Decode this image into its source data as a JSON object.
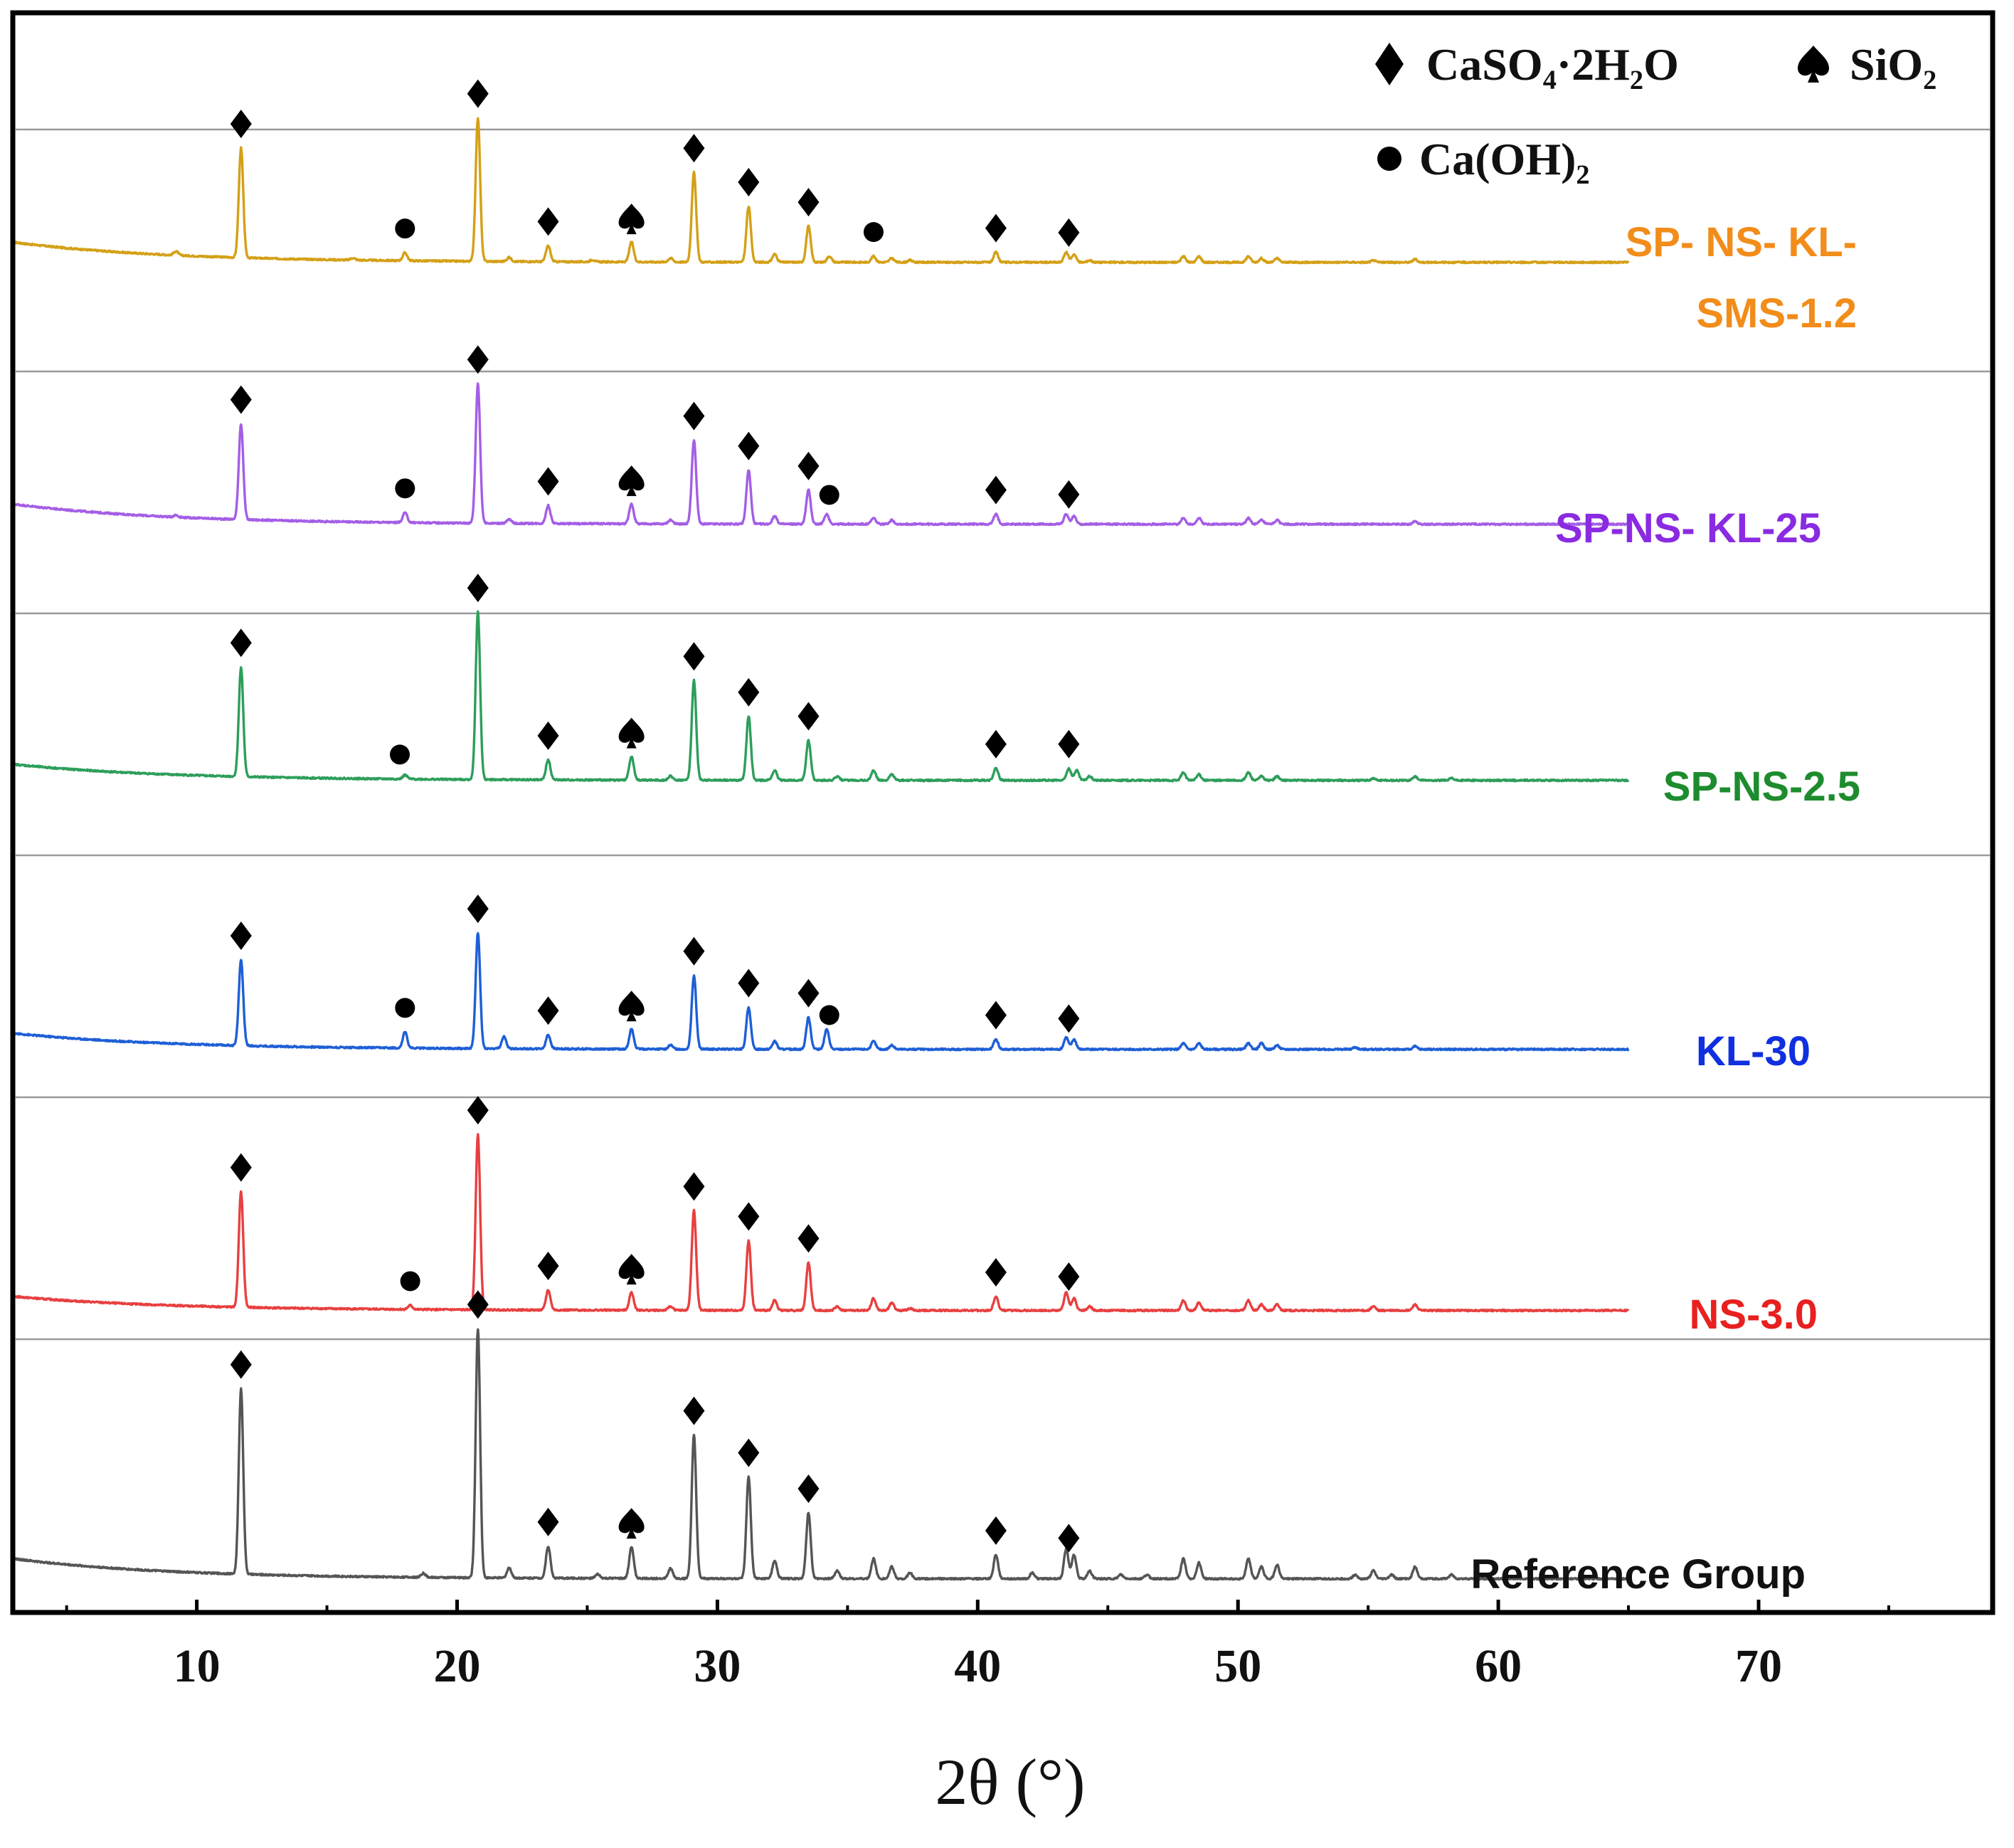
{
  "chart_data": {
    "type": "line",
    "title": "",
    "xlabel": "2θ (°)",
    "ylabel": "",
    "xlim": [
      3,
      79
    ],
    "xticks": [
      10,
      20,
      30,
      40,
      50,
      60,
      70
    ],
    "x_range": [
      3,
      65
    ],
    "legend": [
      {
        "marker": "diamond",
        "label": "CaSO₄·2H₂O"
      },
      {
        "marker": "spade",
        "label": "SiO₂"
      },
      {
        "marker": "circle",
        "label": "Ca(OH)₂"
      }
    ],
    "series": [
      {
        "name": "SP- NS- KL- SMS-1.2",
        "label_lines": [
          "SP- NS- KL-",
          "SMS-1.2"
        ],
        "color": "#D4A017",
        "label_color": "#F28C1A",
        "peaks": [
          [
            9.2,
            2
          ],
          [
            11.7,
            55
          ],
          [
            16.0,
            1
          ],
          [
            18.0,
            4
          ],
          [
            20.8,
            72
          ],
          [
            22.0,
            2
          ],
          [
            23.5,
            8
          ],
          [
            25.2,
            1
          ],
          [
            26.7,
            10
          ],
          [
            28.2,
            2
          ],
          [
            29.1,
            45
          ],
          [
            31.2,
            28
          ],
          [
            32.2,
            4
          ],
          [
            33.5,
            18
          ],
          [
            34.3,
            3
          ],
          [
            36.0,
            3
          ],
          [
            36.7,
            2
          ],
          [
            37.4,
            1
          ],
          [
            40.7,
            5
          ],
          [
            43.4,
            5
          ],
          [
            43.7,
            4
          ],
          [
            44.3,
            1
          ],
          [
            47.9,
            3
          ],
          [
            48.5,
            3
          ],
          [
            50.4,
            3
          ],
          [
            50.9,
            2
          ],
          [
            51.5,
            2
          ],
          [
            55.2,
            1
          ],
          [
            56.8,
            1.5
          ]
        ],
        "bg_start": 10,
        "markers": [
          {
            "x": 11.7,
            "type": "diamond"
          },
          {
            "x": 18.0,
            "type": "circle"
          },
          {
            "x": 20.8,
            "type": "diamond"
          },
          {
            "x": 23.5,
            "type": "diamond"
          },
          {
            "x": 26.7,
            "type": "spade"
          },
          {
            "x": 29.1,
            "type": "diamond"
          },
          {
            "x": 31.2,
            "type": "diamond"
          },
          {
            "x": 33.5,
            "type": "diamond"
          },
          {
            "x": 36.0,
            "type": "circle"
          },
          {
            "x": 40.7,
            "type": "diamond"
          },
          {
            "x": 43.5,
            "type": "diamond"
          }
        ]
      },
      {
        "name": "SP-NS- KL-25",
        "label_lines": [
          "SP-NS- KL-25"
        ],
        "color": "#A45EE5",
        "label_color": "#8A2BE2",
        "peaks": [
          [
            9.2,
            1
          ],
          [
            11.7,
            48
          ],
          [
            18.0,
            5
          ],
          [
            20.8,
            70
          ],
          [
            22.0,
            2
          ],
          [
            23.5,
            9
          ],
          [
            26.7,
            10
          ],
          [
            28.2,
            2
          ],
          [
            29.1,
            42
          ],
          [
            31.2,
            27
          ],
          [
            32.2,
            4
          ],
          [
            33.5,
            17
          ],
          [
            34.2,
            5
          ],
          [
            36.0,
            3
          ],
          [
            36.7,
            2
          ],
          [
            40.7,
            5
          ],
          [
            43.4,
            5
          ],
          [
            43.7,
            4
          ],
          [
            47.9,
            3
          ],
          [
            48.5,
            3
          ],
          [
            50.4,
            3
          ],
          [
            50.9,
            2
          ],
          [
            51.5,
            2
          ],
          [
            56.8,
            1.5
          ]
        ],
        "bg_start": 10,
        "markers": [
          {
            "x": 11.7,
            "type": "diamond"
          },
          {
            "x": 18.0,
            "type": "circle"
          },
          {
            "x": 20.8,
            "type": "diamond"
          },
          {
            "x": 23.5,
            "type": "diamond"
          },
          {
            "x": 26.7,
            "type": "spade"
          },
          {
            "x": 29.1,
            "type": "diamond"
          },
          {
            "x": 31.2,
            "type": "diamond"
          },
          {
            "x": 33.5,
            "type": "diamond"
          },
          {
            "x": 34.3,
            "type": "circle"
          },
          {
            "x": 40.7,
            "type": "diamond"
          },
          {
            "x": 43.5,
            "type": "diamond"
          }
        ]
      },
      {
        "name": "SP-NS-2.5",
        "label_lines": [
          "SP-NS-2.5"
        ],
        "color": "#2E9E5B",
        "label_color": "#1E8C2E",
        "peaks": [
          [
            11.7,
            55
          ],
          [
            18.0,
            2
          ],
          [
            20.8,
            84
          ],
          [
            23.5,
            10
          ],
          [
            26.7,
            12
          ],
          [
            28.2,
            2
          ],
          [
            29.1,
            50
          ],
          [
            31.2,
            32
          ],
          [
            32.2,
            5
          ],
          [
            33.5,
            20
          ],
          [
            34.6,
            2
          ],
          [
            36.0,
            5
          ],
          [
            36.7,
            3
          ],
          [
            40.7,
            6
          ],
          [
            43.5,
            6
          ],
          [
            43.8,
            5
          ],
          [
            44.3,
            2
          ],
          [
            47.9,
            4
          ],
          [
            48.5,
            3
          ],
          [
            50.4,
            4
          ],
          [
            50.9,
            2
          ],
          [
            51.5,
            2
          ],
          [
            55.2,
            1
          ],
          [
            56.8,
            2
          ],
          [
            58.2,
            1
          ]
        ],
        "bg_start": 8,
        "markers": [
          {
            "x": 11.7,
            "type": "diamond"
          },
          {
            "x": 17.8,
            "type": "circle"
          },
          {
            "x": 20.8,
            "type": "diamond"
          },
          {
            "x": 23.5,
            "type": "diamond"
          },
          {
            "x": 26.7,
            "type": "spade"
          },
          {
            "x": 29.1,
            "type": "diamond"
          },
          {
            "x": 31.2,
            "type": "diamond"
          },
          {
            "x": 33.5,
            "type": "diamond"
          },
          {
            "x": 40.7,
            "type": "diamond"
          },
          {
            "x": 43.5,
            "type": "diamond"
          }
        ]
      },
      {
        "name": "KL-30",
        "label_lines": [
          "KL-30"
        ],
        "color": "#1E5FD6",
        "label_color": "#1030E0",
        "peaks": [
          [
            11.7,
            43
          ],
          [
            18.0,
            8
          ],
          [
            20.8,
            58
          ],
          [
            21.8,
            6
          ],
          [
            23.5,
            7
          ],
          [
            26.7,
            10
          ],
          [
            28.2,
            2
          ],
          [
            29.1,
            37
          ],
          [
            31.2,
            21
          ],
          [
            32.2,
            4
          ],
          [
            33.5,
            16
          ],
          [
            34.2,
            10
          ],
          [
            36.0,
            4
          ],
          [
            36.7,
            2
          ],
          [
            40.7,
            5
          ],
          [
            43.4,
            6
          ],
          [
            43.7,
            5
          ],
          [
            47.9,
            3
          ],
          [
            48.5,
            3
          ],
          [
            50.4,
            3
          ],
          [
            50.9,
            3
          ],
          [
            51.5,
            2
          ],
          [
            54.5,
            1
          ],
          [
            56.8,
            1.5
          ]
        ],
        "bg_start": 8,
        "markers": [
          {
            "x": 11.7,
            "type": "diamond"
          },
          {
            "x": 18.0,
            "type": "circle"
          },
          {
            "x": 20.8,
            "type": "diamond"
          },
          {
            "x": 23.5,
            "type": "diamond"
          },
          {
            "x": 26.7,
            "type": "spade"
          },
          {
            "x": 29.1,
            "type": "diamond"
          },
          {
            "x": 31.2,
            "type": "diamond"
          },
          {
            "x": 33.5,
            "type": "diamond"
          },
          {
            "x": 34.3,
            "type": "circle"
          },
          {
            "x": 40.7,
            "type": "diamond"
          },
          {
            "x": 43.5,
            "type": "diamond"
          }
        ]
      },
      {
        "name": "NS-3.0",
        "label_lines": [
          "NS-3.0"
        ],
        "color": "#E84040",
        "label_color": "#E82020",
        "peaks": [
          [
            11.7,
            58
          ],
          [
            18.2,
            2
          ],
          [
            20.8,
            88
          ],
          [
            23.5,
            10
          ],
          [
            26.7,
            9
          ],
          [
            28.2,
            2
          ],
          [
            29.1,
            50
          ],
          [
            31.2,
            35
          ],
          [
            32.2,
            5
          ],
          [
            33.5,
            24
          ],
          [
            34.6,
            2
          ],
          [
            36.0,
            6
          ],
          [
            36.7,
            4
          ],
          [
            37.4,
            1
          ],
          [
            40.7,
            7
          ],
          [
            43.4,
            9
          ],
          [
            43.7,
            6
          ],
          [
            44.3,
            2
          ],
          [
            47.9,
            5
          ],
          [
            48.5,
            4
          ],
          [
            50.4,
            5
          ],
          [
            50.9,
            3
          ],
          [
            51.5,
            3
          ],
          [
            55.2,
            2
          ],
          [
            56.8,
            3
          ]
        ],
        "bg_start": 7,
        "markers": [
          {
            "x": 11.7,
            "type": "diamond"
          },
          {
            "x": 18.2,
            "type": "circle"
          },
          {
            "x": 20.8,
            "type": "diamond"
          },
          {
            "x": 23.5,
            "type": "diamond"
          },
          {
            "x": 26.7,
            "type": "spade"
          },
          {
            "x": 29.1,
            "type": "diamond"
          },
          {
            "x": 31.2,
            "type": "diamond"
          },
          {
            "x": 33.5,
            "type": "diamond"
          },
          {
            "x": 40.7,
            "type": "diamond"
          },
          {
            "x": 43.5,
            "type": "diamond"
          }
        ]
      },
      {
        "name": "Reference Group",
        "label_lines": [
          "Reference Group"
        ],
        "color": "#555555",
        "label_color": "#111111",
        "peaks": [
          [
            11.7,
            93
          ],
          [
            18.7,
            2
          ],
          [
            20.8,
            125
          ],
          [
            22.0,
            5
          ],
          [
            23.5,
            16
          ],
          [
            25.4,
            2
          ],
          [
            26.7,
            16
          ],
          [
            28.2,
            5
          ],
          [
            29.1,
            72
          ],
          [
            31.2,
            51
          ],
          [
            32.2,
            9
          ],
          [
            33.5,
            33
          ],
          [
            34.6,
            4
          ],
          [
            36.0,
            10
          ],
          [
            36.7,
            6
          ],
          [
            37.4,
            3
          ],
          [
            40.7,
            12
          ],
          [
            42.1,
            3
          ],
          [
            43.4,
            15
          ],
          [
            43.7,
            12
          ],
          [
            44.3,
            4
          ],
          [
            45.5,
            2
          ],
          [
            46.5,
            2
          ],
          [
            47.9,
            10
          ],
          [
            48.5,
            8
          ],
          [
            50.4,
            10
          ],
          [
            50.9,
            6
          ],
          [
            51.5,
            7
          ],
          [
            54.5,
            2
          ],
          [
            55.2,
            4
          ],
          [
            55.9,
            2
          ],
          [
            56.8,
            6
          ],
          [
            58.2,
            2
          ]
        ],
        "bg_start": 10,
        "markers": [
          {
            "x": 11.7,
            "type": "diamond"
          },
          {
            "x": 20.8,
            "type": "diamond"
          },
          {
            "x": 23.5,
            "type": "diamond"
          },
          {
            "x": 26.7,
            "type": "spade"
          },
          {
            "x": 29.1,
            "type": "diamond"
          },
          {
            "x": 31.2,
            "type": "diamond"
          },
          {
            "x": 33.5,
            "type": "diamond"
          },
          {
            "x": 40.7,
            "type": "diamond"
          },
          {
            "x": 43.5,
            "type": "diamond"
          }
        ]
      }
    ]
  }
}
